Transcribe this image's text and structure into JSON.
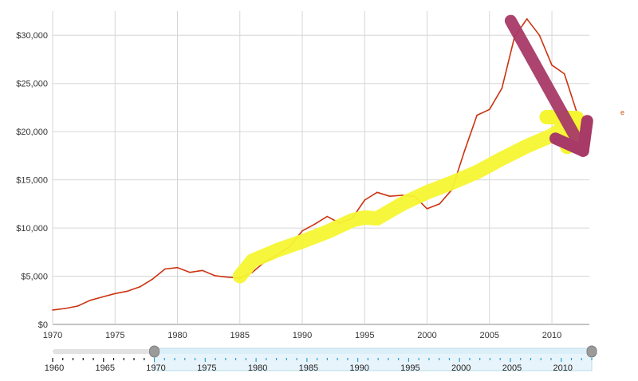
{
  "chart_data": {
    "type": "line",
    "title": "",
    "xlabel": "",
    "ylabel": "",
    "xlim": [
      1970,
      2013
    ],
    "ylim": [
      0,
      32500
    ],
    "x_ticks": [
      1970,
      1975,
      1980,
      1985,
      1990,
      1995,
      2000,
      2005,
      2010
    ],
    "x_tick_labels": [
      "1970",
      "1975",
      "1980",
      "1985",
      "1990",
      "1995",
      "2000",
      "2005",
      "2010"
    ],
    "y_ticks": [
      0,
      5000,
      10000,
      15000,
      20000,
      25000,
      30000
    ],
    "y_tick_labels": [
      "$0",
      "$5,000",
      "$10,000",
      "$15,000",
      "$20,000",
      "$25,000",
      "$30,000"
    ],
    "grid": true,
    "legend": "none",
    "series": [
      {
        "name": "",
        "color": "#cc3311",
        "x": [
          1970,
          1971,
          1972,
          1973,
          1974,
          1975,
          1976,
          1977,
          1978,
          1979,
          1980,
          1981,
          1982,
          1983,
          1984,
          1985,
          1986,
          1987,
          1988,
          1989,
          1990,
          1991,
          1992,
          1993,
          1994,
          1995,
          1996,
          1997,
          1998,
          1999,
          2000,
          2001,
          2002,
          2003,
          2004,
          2005,
          2006,
          2007,
          2008,
          2009,
          2010,
          2011,
          2012
        ],
        "values": [
          1500,
          1650,
          1900,
          2500,
          2850,
          3200,
          3450,
          3900,
          4700,
          5750,
          5900,
          5400,
          5600,
          5050,
          4900,
          4800,
          5400,
          6500,
          7200,
          8100,
          9700,
          10400,
          11200,
          10500,
          11000,
          12900,
          13700,
          13300,
          13400,
          13300,
          12000,
          12500,
          14000,
          18000,
          21700,
          22300,
          24500,
          29800,
          31700,
          30000,
          26900,
          26000,
          22000
        ]
      }
    ],
    "annotations": [
      {
        "type": "highlighter-arrow",
        "color": "#f5f531",
        "direction": "up-right",
        "x": [
          1985,
          1986,
          1988,
          1990,
          1992,
          1994,
          1995,
          1996,
          1998,
          2000,
          2002,
          2004,
          2006,
          2008,
          2010,
          2012
        ],
        "values": [
          5000,
          6600,
          7700,
          8600,
          9600,
          10800,
          11100,
          11000,
          12500,
          13700,
          14700,
          15800,
          17200,
          18500,
          19600,
          21400
        ]
      },
      {
        "type": "highlighter-arrow",
        "color": "#a83a67",
        "direction": "down-right",
        "x": [
          2006.7,
          2012.5
        ],
        "values": [
          31500,
          18000
        ]
      }
    ],
    "range_slider": {
      "track_color": "#e2e2e2",
      "selection_color": "#e8f4fb",
      "ticks": [
        "1960",
        "1965",
        "1970",
        "1975",
        "1980",
        "1985",
        "1990",
        "1995",
        "2000",
        "2005",
        "2010"
      ],
      "range": [
        1960,
        2013
      ],
      "selected": [
        1970,
        2013
      ]
    }
  }
}
